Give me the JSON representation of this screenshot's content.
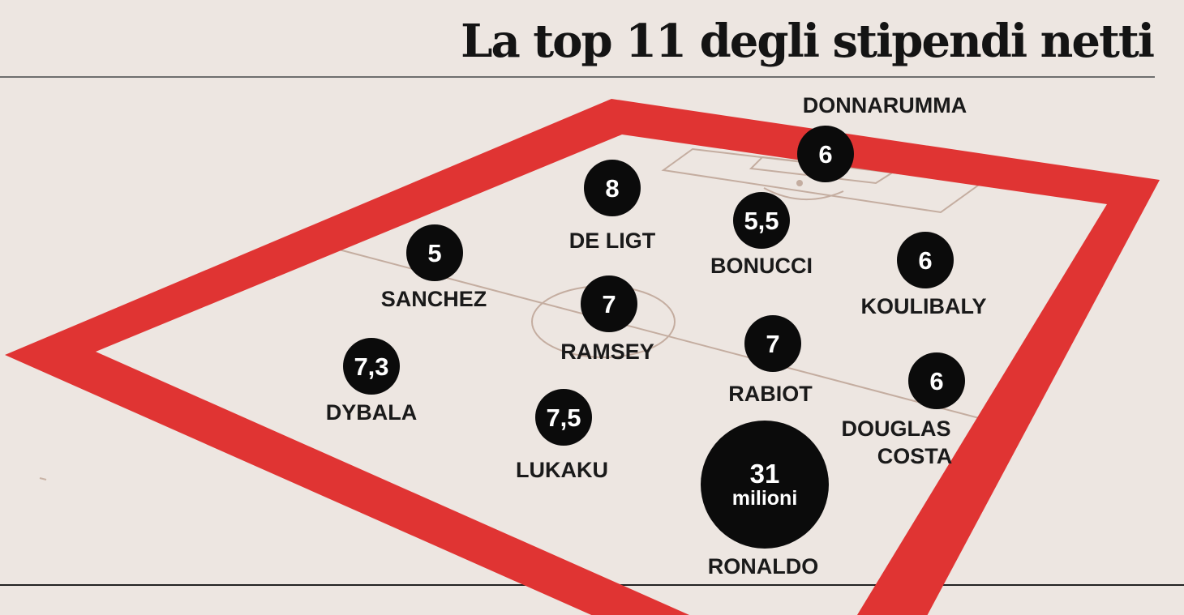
{
  "title": "La top 11 degli stipendi netti",
  "colors": {
    "background": "#ede6e1",
    "frame_red": "#e03433",
    "pitch_lines": "#c4ada0",
    "disc": "#0b0b0b",
    "text": "#1a1a1a"
  },
  "players": [
    {
      "id": "donnarumma",
      "name": "DONNARUMMA",
      "value": "6"
    },
    {
      "id": "de-ligt",
      "name": "DE LIGT",
      "value": "8"
    },
    {
      "id": "bonucci",
      "name": "BONUCCI",
      "value": "5,5"
    },
    {
      "id": "koulibaly",
      "name": "KOULIBALY",
      "value": "6"
    },
    {
      "id": "sanchez",
      "name": "SANCHEZ",
      "value": "5"
    },
    {
      "id": "ramsey",
      "name": "RAMSEY",
      "value": "7"
    },
    {
      "id": "rabiot",
      "name": "RABIOT",
      "value": "7"
    },
    {
      "id": "dybala",
      "name": "DYBALA",
      "value": "7,3"
    },
    {
      "id": "douglas-costa",
      "name": "DOUGLAS",
      "name_line2": "COSTA",
      "value": "6"
    },
    {
      "id": "lukaku",
      "name": "LUKAKU",
      "value": "7,5"
    },
    {
      "id": "ronaldo",
      "name": "RONALDO",
      "value": "31",
      "unit": "milioni"
    }
  ]
}
